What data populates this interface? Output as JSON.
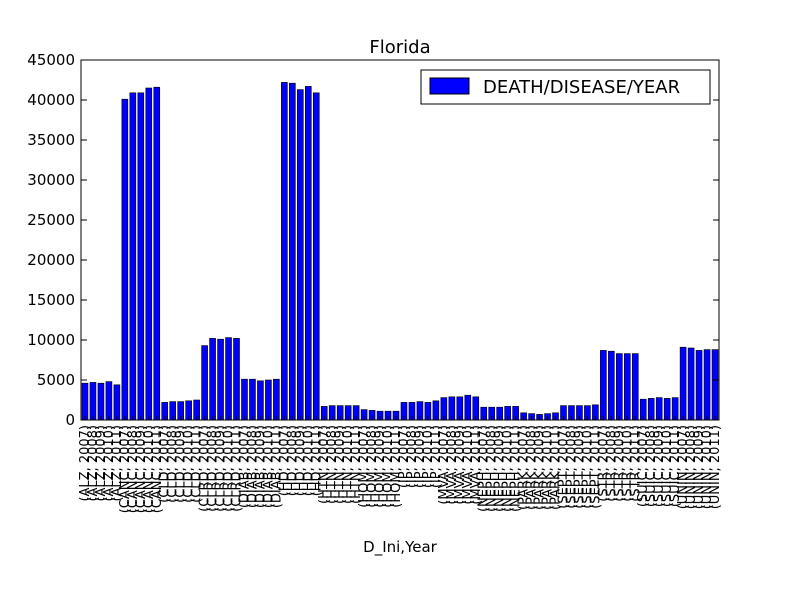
{
  "chart_data": {
    "type": "bar",
    "title": "Florida",
    "xlabel": "D_Ini,Year",
    "ylabel": "",
    "ylim": [
      0,
      45000
    ],
    "yticks": [
      0,
      5000,
      10000,
      15000,
      20000,
      25000,
      30000,
      35000,
      40000,
      45000
    ],
    "grid": false,
    "legend_position": "top-right",
    "series": [
      {
        "name": "DEATH/DISEASE/YEAR",
        "color": "#0000ff",
        "values": [
          4600,
          4700,
          4600,
          4800,
          4400,
          40100,
          40900,
          40900,
          41500,
          41600,
          2200,
          2300,
          2300,
          2400,
          2500,
          9300,
          10200,
          10100,
          10300,
          10200,
          5100,
          5100,
          4900,
          5000,
          5100,
          42200,
          42100,
          41300,
          41700,
          40900,
          1700,
          1800,
          1800,
          1800,
          1800,
          1300,
          1200,
          1100,
          1100,
          1100,
          2200,
          2200,
          2300,
          2200,
          2400,
          2800,
          2900,
          2900,
          3100,
          2900,
          1600,
          1600,
          1600,
          1700,
          1700,
          900,
          800,
          700,
          800,
          900,
          1800,
          1800,
          1800,
          1800,
          1900,
          8700,
          8600,
          8300,
          8300,
          8300,
          2600,
          2700,
          2800,
          2700,
          2800,
          9100,
          9000,
          8700,
          8800,
          8800
        ]
      }
    ],
    "categories": [
      "(ALZ, 2007)",
      "(ALZ, 2008)",
      "(ALZ, 2009)",
      "(ALZ, 2010)",
      "(ALZ, 2011)",
      "(CANC, 2007)",
      "(CANC, 2008)",
      "(CANC, 2009)",
      "(CANC, 2010)",
      "(CANC, 2011)",
      "(CLD, 2007)",
      "(CLD, 2008)",
      "(CLD, 2009)",
      "(CLD, 2010)",
      "(CLD, 2011)",
      "(CLRD, 2007)",
      "(CLRD, 2008)",
      "(CLRD, 2009)",
      "(CLRD, 2010)",
      "(CLRD, 2011)",
      "(DIAB, 2007)",
      "(DIAB, 2008)",
      "(DIAB, 2009)",
      "(DIAB, 2010)",
      "(DIAB, 2011)",
      "(HD, 2007)",
      "(HD, 2008)",
      "(HD, 2009)",
      "(HD, 2010)",
      "(HD, 2011)",
      "(HTN, 2007)",
      "(HTN, 2008)",
      "(HTN, 2009)",
      "(HTN, 2010)",
      "(HTN, 2011)",
      "(HOM, 2007)",
      "(HOM, 2008)",
      "(HOM, 2009)",
      "(HOM, 2010)",
      "(HOM, 2011)",
      "(IP, 2007)",
      "(IP, 2008)",
      "(IP, 2009)",
      "(IP, 2010)",
      "(IP, 2011)",
      "(MVA, 2007)",
      "(MVA, 2008)",
      "(MVA, 2009)",
      "(MVA, 2010)",
      "(MVA, 2011)",
      "(NEPH, 2007)",
      "(NEPH, 2008)",
      "(NEPH, 2009)",
      "(NEPH, 2010)",
      "(NEPH, 2011)",
      "(PARK, 2007)",
      "(PARK, 2008)",
      "(PARK, 2009)",
      "(PARK, 2010)",
      "(PARK, 2011)",
      "(SEPT, 2007)",
      "(SEPT, 2008)",
      "(SEPT, 2009)",
      "(SEPT, 2010)",
      "(SEPT, 2011)",
      "(STR, 2007)",
      "(STR, 2008)",
      "(STR, 2009)",
      "(STR, 2010)",
      "(STR, 2011)",
      "(SUIC, 2007)",
      "(SUIC, 2008)",
      "(SUIC, 2009)",
      "(SUIC, 2010)",
      "(SUIC, 2011)",
      "(UNIN, 2007)",
      "(UNIN, 2008)",
      "(UNIN, 2009)",
      "(UNIN, 2010)",
      "(UNIN, 2011)"
    ]
  }
}
